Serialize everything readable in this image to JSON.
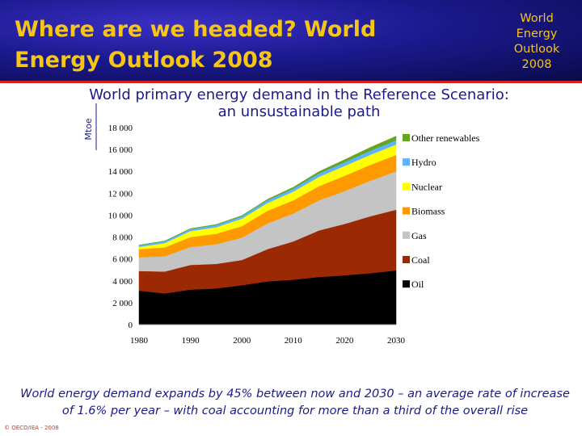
{
  "header": {
    "title": "Where are we headed? World Energy Outlook 2008",
    "badge": "World Energy Outlook 2008"
  },
  "caption": "World energy demand expands by 45% between now and 2030 – an average rate of increase of 1.6% per year – with coal accounting for more than a third of the overall rise",
  "copyright": "© OECD/IEA - 2008",
  "colors": {
    "oil": "#000000",
    "coal": "#9b2a04",
    "gas": "#c4c4c4",
    "biomass": "#ff9900",
    "nuclear": "#ffff00",
    "hydro": "#5ab4ff",
    "other_renewables": "#66a61e",
    "title": "#1a1a8a",
    "header_text": "#f5c518"
  },
  "chart_data": {
    "type": "area",
    "stacked": true,
    "title": "World primary energy demand in the Reference Scenario: an unsustainable path",
    "ylabel": "Mtoe",
    "xlabel": "",
    "xlim": [
      1980,
      2030
    ],
    "ylim": [
      0,
      18000
    ],
    "x_ticks": [
      "1980",
      "1990",
      "2000",
      "2010",
      "2020",
      "2030"
    ],
    "y_ticks": [
      "0",
      "2 000",
      "4 000",
      "6 000",
      "8 000",
      "10 000",
      "12 000",
      "14 000",
      "16 000",
      "18 000"
    ],
    "x": [
      1980,
      1985,
      1990,
      1995,
      2000,
      2005,
      2010,
      2015,
      2020,
      2025,
      2030
    ],
    "series": [
      {
        "name": "Oil",
        "values": [
          3100,
          2850,
          3200,
          3300,
          3600,
          3950,
          4100,
          4350,
          4500,
          4700,
          4950
        ]
      },
      {
        "name": "Coal",
        "values": [
          1800,
          2000,
          2250,
          2250,
          2300,
          2950,
          3500,
          4250,
          4700,
          5200,
          5550
        ]
      },
      {
        "name": "Gas",
        "values": [
          1250,
          1400,
          1650,
          1800,
          2050,
          2350,
          2550,
          2750,
          3000,
          3250,
          3500
        ]
      },
      {
        "name": "Biomass",
        "values": [
          750,
          800,
          900,
          950,
          1050,
          1150,
          1200,
          1300,
          1400,
          1450,
          1500
        ]
      },
      {
        "name": "Nuclear",
        "values": [
          200,
          400,
          550,
          600,
          680,
          720,
          800,
          850,
          900,
          920,
          950
        ]
      },
      {
        "name": "Hydro",
        "values": [
          150,
          160,
          180,
          200,
          220,
          250,
          280,
          310,
          340,
          370,
          400
        ]
      },
      {
        "name": "Other renewables",
        "values": [
          20,
          30,
          40,
          50,
          60,
          80,
          120,
          170,
          230,
          300,
          370
        ]
      }
    ],
    "legend": [
      "Other renewables",
      "Hydro",
      "Nuclear",
      "Biomass",
      "Gas",
      "Coal",
      "Oil"
    ],
    "legend_position": "right"
  }
}
